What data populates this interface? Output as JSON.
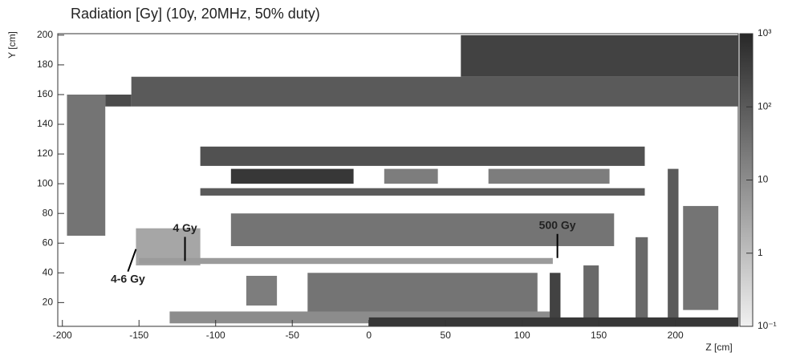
{
  "chart_data": {
    "type": "heatmap",
    "title": "Radiation [Gy] (10y, 20MHz, 50% duty)",
    "x_label": "Z [cm]",
    "y_label": "Y [cm]",
    "xlim": [
      -203,
      241
    ],
    "ylim": [
      4,
      201
    ],
    "xticks": [
      -200,
      -150,
      -100,
      -50,
      0,
      50,
      100,
      150,
      200
    ],
    "yticks": [
      20,
      40,
      60,
      80,
      100,
      120,
      140,
      160,
      180,
      200
    ],
    "color_scale": "log",
    "clim": [
      0.1,
      1000
    ],
    "cticks": [
      {
        "value": 0.1,
        "label": "10⁻¹"
      },
      1,
      10,
      {
        "value": 100,
        "label": "10²"
      },
      {
        "value": 1000,
        "label": "10³"
      }
    ],
    "regions": [
      {
        "z": [
          60,
          241
        ],
        "y": [
          172,
          200
        ],
        "dose": 300
      },
      {
        "z": [
          -155,
          241
        ],
        "y": [
          152,
          172
        ],
        "dose": 100
      },
      {
        "z": [
          -197,
          -172
        ],
        "y": [
          65,
          160
        ],
        "dose": 30
      },
      {
        "z": [
          -172,
          -155
        ],
        "y": [
          152,
          160
        ],
        "dose": 200
      },
      {
        "z": [
          -110,
          180
        ],
        "y": [
          112,
          125
        ],
        "dose": 150
      },
      {
        "z": [
          -90,
          -10
        ],
        "y": [
          100,
          110
        ],
        "dose": 500
      },
      {
        "z": [
          10,
          45
        ],
        "y": [
          100,
          110
        ],
        "dose": 20
      },
      {
        "z": [
          78,
          157
        ],
        "y": [
          100,
          110
        ],
        "dose": 20
      },
      {
        "z": [
          -110,
          180
        ],
        "y": [
          92,
          97
        ],
        "dose": 100
      },
      {
        "z": [
          -90,
          160
        ],
        "y": [
          58,
          80
        ],
        "dose": 30
      },
      {
        "z": [
          -152,
          -110
        ],
        "y": [
          45,
          70
        ],
        "dose": 3
      },
      {
        "z": [
          -150,
          120
        ],
        "y": [
          46,
          50
        ],
        "dose": 5
      },
      {
        "z": [
          -80,
          -60
        ],
        "y": [
          18,
          38
        ],
        "dose": 20
      },
      {
        "z": [
          -40,
          110
        ],
        "y": [
          10,
          40
        ],
        "dose": 30
      },
      {
        "z": [
          -130,
          120
        ],
        "y": [
          6,
          14
        ],
        "dose": 10
      },
      {
        "z": [
          118,
          125
        ],
        "y": [
          6,
          40
        ],
        "dose": 300
      },
      {
        "z": [
          140,
          150
        ],
        "y": [
          6,
          45
        ],
        "dose": 50
      },
      {
        "z": [
          174,
          182
        ],
        "y": [
          6,
          64
        ],
        "dose": 50
      },
      {
        "z": [
          195,
          202
        ],
        "y": [
          6,
          110
        ],
        "dose": 100
      },
      {
        "z": [
          205,
          228
        ],
        "y": [
          15,
          85
        ],
        "dose": 30
      },
      {
        "z": [
          0,
          241
        ],
        "y": [
          4,
          10
        ],
        "dose": 500
      }
    ],
    "annotations": [
      {
        "text": "4 Gy",
        "target": [
          -120,
          48
        ]
      },
      {
        "text": "4-6 Gy",
        "target": [
          -152,
          56
        ]
      },
      {
        "text": "500 Gy",
        "target": [
          123,
          50
        ]
      }
    ]
  }
}
